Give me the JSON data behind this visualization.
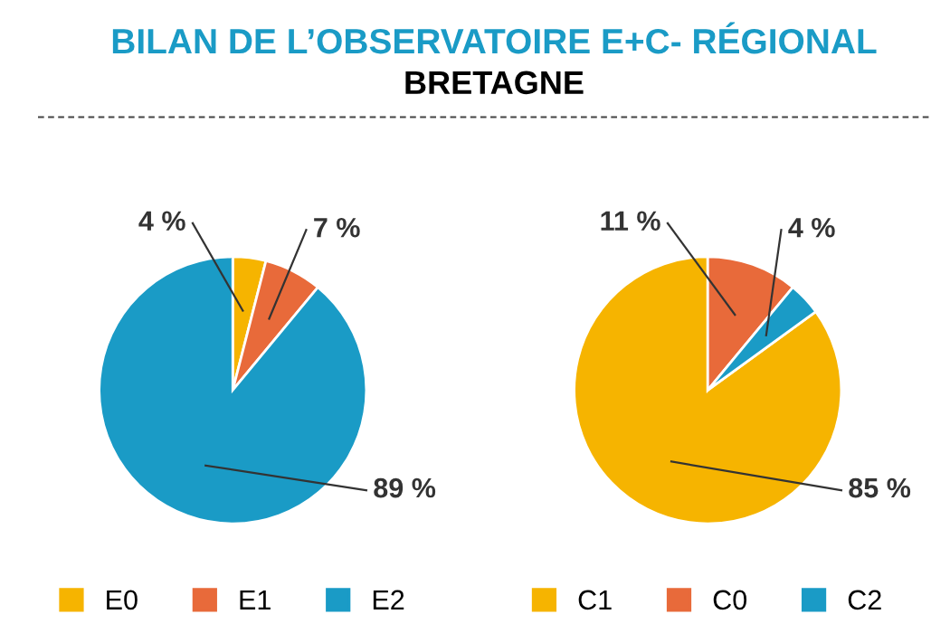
{
  "chart_data": [
    {
      "type": "pie",
      "title": "BILAN DE L’OBSERVATOIRE E+C- RÉGIONAL",
      "subtitle": "BRETAGNE",
      "categories": [
        "E0",
        "E1",
        "E2"
      ],
      "values": [
        4,
        7,
        89
      ],
      "colors": [
        "#f6b400",
        "#e86a3a",
        "#1a9bc6"
      ],
      "value_labels": [
        "4 %",
        "7 %",
        "89 %"
      ],
      "legend": "bottom"
    },
    {
      "type": "pie",
      "categories": [
        "C1",
        "C0",
        "C2"
      ],
      "values": [
        85,
        11,
        4
      ],
      "colors": [
        "#f6b400",
        "#e86a3a",
        "#1a9bc6"
      ],
      "value_labels": [
        "85 %",
        "11 %",
        "4 %"
      ],
      "legend": "bottom"
    }
  ]
}
